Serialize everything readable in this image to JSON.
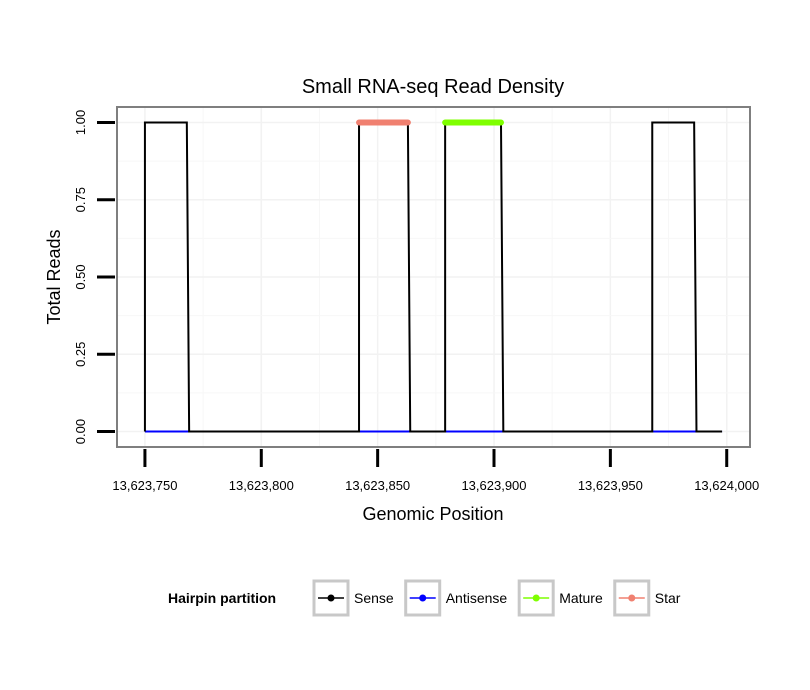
{
  "chart_data": {
    "type": "line",
    "title": "Small RNA-seq Read Density",
    "xlabel": "Genomic Position",
    "ylabel": "Total Reads",
    "xlim": [
      13623738,
      13624010
    ],
    "ylim": [
      -0.05,
      1.05
    ],
    "x_ticks": [
      13623750,
      13623800,
      13623850,
      13623900,
      13623950,
      13624000
    ],
    "x_tick_labels": [
      "13,623,750",
      "13,623,800",
      "13,623,850",
      "13,623,900",
      "13,623,950",
      "13,624,000"
    ],
    "y_ticks": [
      0,
      0.25,
      0.5,
      0.75,
      1.0
    ],
    "y_tick_labels": [
      "0.00",
      "0.25",
      "0.50",
      "0.75",
      "1.00"
    ],
    "grid": true,
    "legend": {
      "title": "Hairpin partition",
      "position": "bottom",
      "entries": [
        {
          "name": "Sense",
          "color": "#000000"
        },
        {
          "name": "Antisense",
          "color": "#0000ff"
        },
        {
          "name": "Mature",
          "color": "#7fff00"
        },
        {
          "name": "Star",
          "color": "#f08070"
        }
      ]
    },
    "series": [
      {
        "name": "Sense",
        "color": "#000000",
        "points": [
          [
            13623750,
            0
          ],
          [
            13623750,
            1
          ],
          [
            13623768,
            1
          ],
          [
            13623769,
            0
          ],
          [
            13623842,
            0
          ],
          [
            13623842,
            1
          ],
          [
            13623863,
            1
          ],
          [
            13623864,
            0
          ],
          [
            13623879,
            0
          ],
          [
            13623879,
            1
          ],
          [
            13623903,
            1
          ],
          [
            13623904,
            0
          ],
          [
            13623968,
            0
          ],
          [
            13623968,
            1
          ],
          [
            13623986,
            1
          ],
          [
            13623987,
            0
          ],
          [
            13623998,
            0
          ]
        ]
      },
      {
        "name": "Antisense",
        "color": "#0000ff",
        "points": [
          [
            13623750,
            0
          ],
          [
            13623998,
            0
          ]
        ]
      },
      {
        "name": "Mature",
        "color": "#7fff00",
        "points": [
          [
            13623879,
            1
          ],
          [
            13623903,
            1
          ]
        ]
      },
      {
        "name": "Star",
        "color": "#f08070",
        "points": [
          [
            13623842,
            1
          ],
          [
            13623863,
            1
          ]
        ]
      }
    ]
  }
}
